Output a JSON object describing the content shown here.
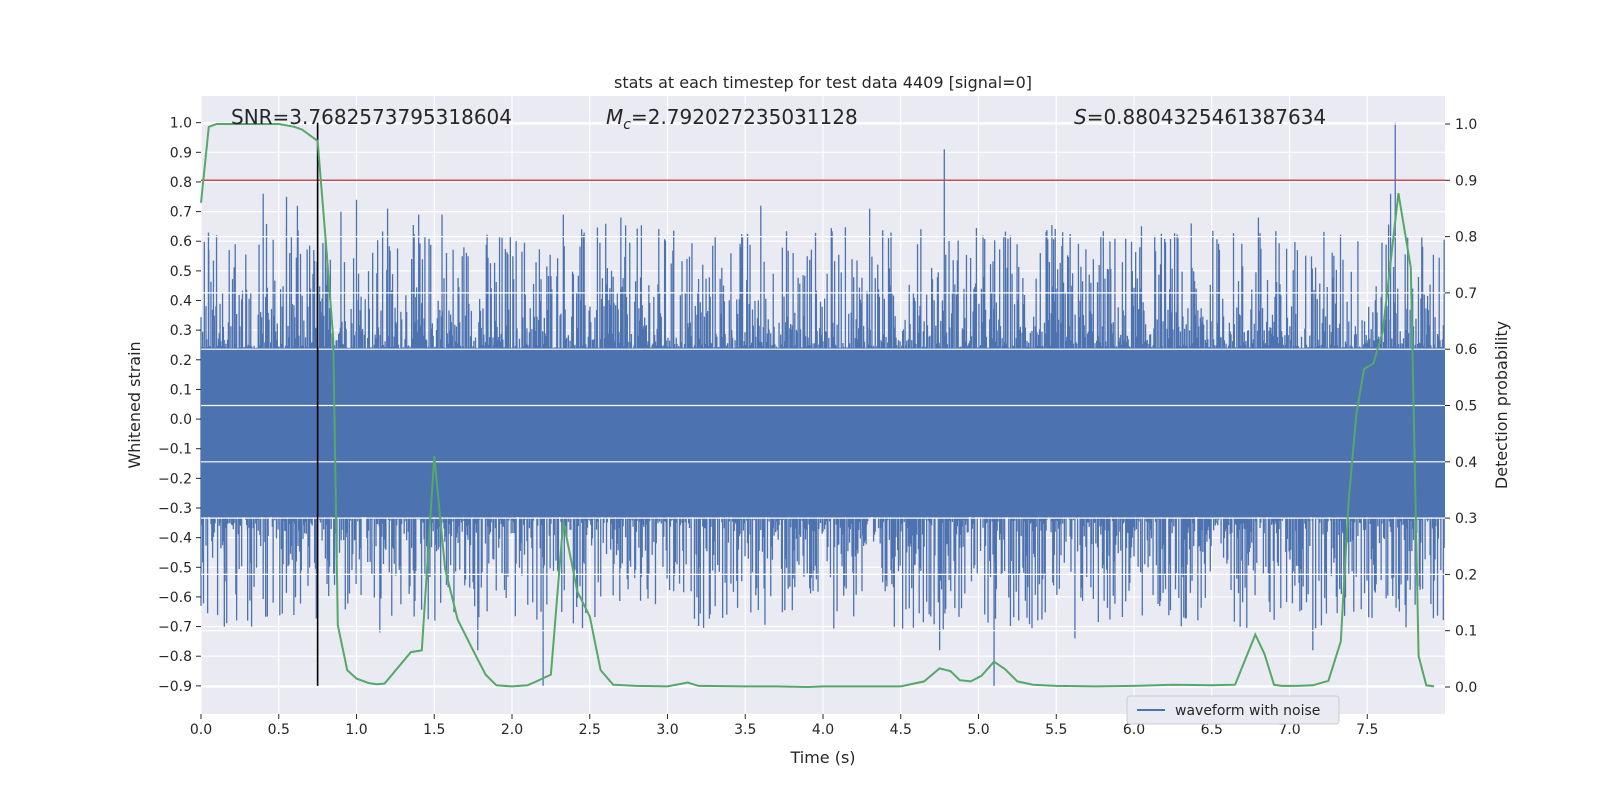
{
  "chart_data": {
    "type": "line",
    "title": "stats at each timestep for test data 4409 [signal=0]",
    "xlabel": "Time (s)",
    "ylabel_left": "Whitened strain",
    "ylabel_right": "Detection probability",
    "xlim": [
      0,
      8.0
    ],
    "ylim_left": [
      -0.995,
      1.09
    ],
    "ylim_right": [
      0.0,
      1.0
    ],
    "x_ticks": [
      0.0,
      0.5,
      1.0,
      1.5,
      2.0,
      2.5,
      3.0,
      3.5,
      4.0,
      4.5,
      5.0,
      5.5,
      6.0,
      6.5,
      7.0,
      7.5
    ],
    "x_tick_labels": [
      "0.0",
      "0.5",
      "1.0",
      "1.5",
      "2.0",
      "2.5",
      "3.0",
      "3.5",
      "4.0",
      "4.5",
      "5.0",
      "5.5",
      "6.0",
      "6.5",
      "7.0",
      "7.5"
    ],
    "y_left_ticks": [
      -0.9,
      -0.8,
      -0.7,
      -0.6,
      -0.5,
      -0.4,
      -0.3,
      -0.2,
      -0.1,
      0.0,
      0.1,
      0.2,
      0.3,
      0.4,
      0.5,
      0.6,
      0.7,
      0.8,
      0.9,
      1.0
    ],
    "y_left_tick_labels": [
      "−0.9",
      "−0.8",
      "−0.7",
      "−0.6",
      "−0.5",
      "−0.4",
      "−0.3",
      "−0.2",
      "−0.1",
      "0.0",
      "0.1",
      "0.2",
      "0.3",
      "0.4",
      "0.5",
      "0.6",
      "0.7",
      "0.8",
      "0.9",
      "1.0"
    ],
    "y_right_ticks": [
      0.0,
      0.1,
      0.2,
      0.3,
      0.4,
      0.5,
      0.6,
      0.7,
      0.8,
      0.9,
      1.0
    ],
    "y_right_tick_labels": [
      "0.0",
      "0.1",
      "0.2",
      "0.3",
      "0.4",
      "0.5",
      "0.6",
      "0.7",
      "0.8",
      "0.9",
      "1.0"
    ],
    "annotations": {
      "snr_label": "SNR=3.7682573795318604",
      "mc_symbol": "M",
      "mc_sub": "c",
      "mc_value": "=2.792027235031128",
      "s_symbol": "S",
      "s_value": "=0.8804325461387634"
    },
    "threshold_line": {
      "y_right": 0.9,
      "color": "#c44e52"
    },
    "marker_line": {
      "x": 0.75,
      "y_from": -0.9,
      "y_to": 1.0,
      "color": "#000000"
    },
    "waveform": {
      "name": "waveform with noise",
      "color": "#4c72b0",
      "samples": 1500,
      "band_low": -0.33,
      "band_high": 0.24,
      "seed": 4409,
      "peaks": [
        {
          "x": 0.05,
          "y": 0.57
        },
        {
          "x": 0.1,
          "y": 0.62
        },
        {
          "x": 0.15,
          "y": -0.7
        },
        {
          "x": 0.22,
          "y": 0.59
        },
        {
          "x": 0.3,
          "y": -0.68
        },
        {
          "x": 0.4,
          "y": 0.76
        },
        {
          "x": 0.55,
          "y": 0.75
        },
        {
          "x": 0.62,
          "y": 0.72
        },
        {
          "x": 0.9,
          "y": 0.7
        },
        {
          "x": 1.0,
          "y": 0.74
        },
        {
          "x": 1.15,
          "y": -0.72
        },
        {
          "x": 1.2,
          "y": 0.71
        },
        {
          "x": 1.4,
          "y": 0.69
        },
        {
          "x": 1.55,
          "y": 0.69
        },
        {
          "x": 1.78,
          "y": -0.78
        },
        {
          "x": 2.2,
          "y": -0.9
        },
        {
          "x": 2.33,
          "y": 0.69
        },
        {
          "x": 2.7,
          "y": 0.68
        },
        {
          "x": 3.6,
          "y": 0.72
        },
        {
          "x": 4.3,
          "y": 0.71
        },
        {
          "x": 4.78,
          "y": 0.91
        },
        {
          "x": 4.75,
          "y": -0.78
        },
        {
          "x": 5.1,
          "y": -0.9
        },
        {
          "x": 5.62,
          "y": -0.74
        },
        {
          "x": 6.8,
          "y": 0.68
        },
        {
          "x": 7.15,
          "y": -0.78
        },
        {
          "x": 7.68,
          "y": 1.0
        },
        {
          "x": 7.65,
          "y": 0.76
        },
        {
          "x": 7.75,
          "y": -0.66
        }
      ]
    },
    "probability": {
      "name": "detection probability",
      "color": "#55a868",
      "x": [
        0.0,
        0.05,
        0.1,
        0.15,
        0.2,
        0.3,
        0.4,
        0.5,
        0.6,
        0.65,
        0.75,
        0.8,
        0.85,
        0.88,
        0.94,
        1.0,
        1.08,
        1.13,
        1.18,
        1.35,
        1.42,
        1.5,
        1.57,
        1.65,
        1.75,
        1.83,
        1.9,
        2.0,
        2.1,
        2.15,
        2.25,
        2.33,
        2.42,
        2.5,
        2.57,
        2.65,
        2.8,
        3.0,
        3.13,
        3.2,
        3.5,
        3.7,
        3.9,
        4.0,
        4.25,
        4.5,
        4.65,
        4.75,
        4.82,
        4.88,
        4.95,
        5.02,
        5.1,
        5.17,
        5.25,
        5.35,
        5.5,
        5.75,
        6.0,
        6.25,
        6.5,
        6.65,
        6.78,
        6.84,
        6.9,
        6.95,
        7.05,
        7.15,
        7.25,
        7.33,
        7.38,
        7.43,
        7.48,
        7.54,
        7.6,
        7.7,
        7.78,
        7.83,
        7.88,
        7.93
      ],
      "y": [
        0.86,
        0.995,
        1.0,
        1.0,
        1.0,
        1.0,
        1.0,
        1.0,
        0.995,
        0.99,
        0.97,
        0.8,
        0.62,
        0.11,
        0.03,
        0.015,
        0.007,
        0.005,
        0.006,
        0.062,
        0.065,
        0.41,
        0.21,
        0.12,
        0.065,
        0.022,
        0.003,
        0.001,
        0.003,
        0.009,
        0.022,
        0.295,
        0.17,
        0.125,
        0.03,
        0.004,
        0.002,
        0.001,
        0.008,
        0.002,
        0.001,
        0.001,
        0.0,
        0.001,
        0.001,
        0.001,
        0.01,
        0.033,
        0.028,
        0.012,
        0.01,
        0.02,
        0.045,
        0.032,
        0.01,
        0.004,
        0.002,
        0.001,
        0.002,
        0.004,
        0.003,
        0.004,
        0.093,
        0.058,
        0.004,
        0.002,
        0.002,
        0.003,
        0.011,
        0.081,
        0.33,
        0.485,
        0.565,
        0.575,
        0.632,
        0.877,
        0.745,
        0.055,
        0.003,
        0.001
      ]
    },
    "legend": {
      "placement": "lower-right",
      "entries": [
        "waveform with noise"
      ]
    },
    "grid": true
  }
}
